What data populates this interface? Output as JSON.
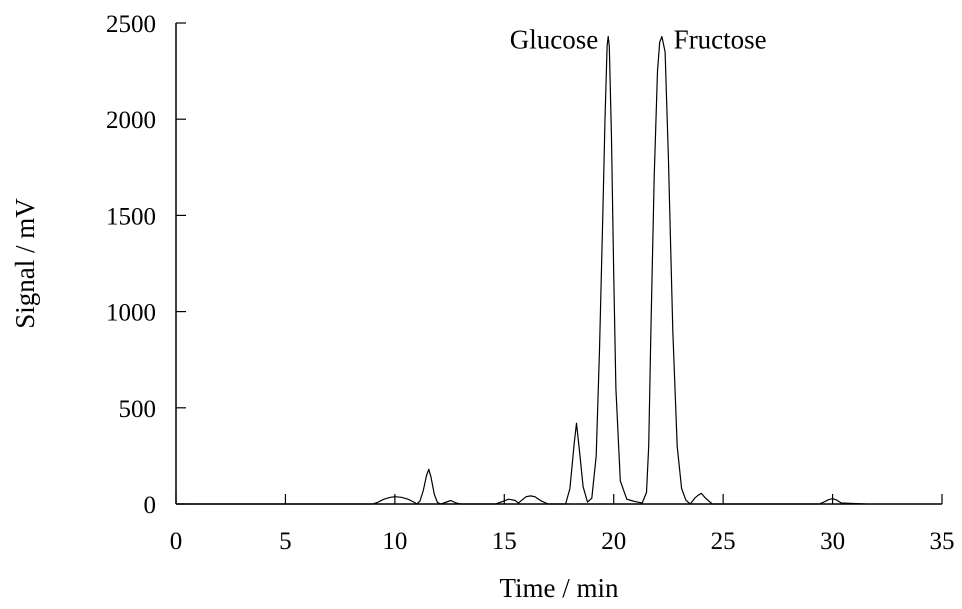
{
  "chart_data": {
    "type": "line",
    "title": "",
    "xlabel": "Time / min",
    "ylabel": "Signal / mV",
    "xlim": [
      0,
      35
    ],
    "ylim": [
      0,
      2500
    ],
    "xticks": [
      0,
      5,
      10,
      15,
      20,
      25,
      30,
      35
    ],
    "yticks": [
      0,
      500,
      1000,
      1500,
      2000,
      2500
    ],
    "grid": false,
    "annotations": [
      {
        "text": "Glucose",
        "x": 19.75,
        "y": 2430
      },
      {
        "text": "Fructose",
        "x": 22.1,
        "y": 2430
      }
    ],
    "series": [
      {
        "x": [
          0,
          9.0,
          9.2,
          9.5,
          9.8,
          10.0,
          10.3,
          10.6,
          10.9,
          11.0,
          11.15,
          11.3,
          11.45,
          11.55,
          11.65,
          11.8,
          11.95,
          12.1,
          12.3,
          12.55,
          12.8,
          13.0,
          14.6,
          14.9,
          15.2,
          15.5,
          15.65,
          15.8,
          16.0,
          16.2,
          16.4,
          16.7,
          17.0,
          17.5,
          17.8,
          18.0,
          18.1,
          18.2,
          18.3,
          18.45,
          18.6,
          18.8,
          19.0,
          19.2,
          19.35,
          19.5,
          19.6,
          19.7,
          19.75,
          19.8,
          19.9,
          20.0,
          20.1,
          20.3,
          20.6,
          20.8,
          21.0,
          21.3,
          21.5,
          21.6,
          21.7,
          21.85,
          22.0,
          22.1,
          22.2,
          22.35,
          22.5,
          22.7,
          22.9,
          23.1,
          23.3,
          23.5,
          23.7,
          23.85,
          24.0,
          24.2,
          24.5,
          25.0,
          29.4,
          29.6,
          29.8,
          30.0,
          30.2,
          30.4,
          31.5
        ],
        "y": [
          0,
          0,
          8,
          25,
          35,
          38,
          35,
          25,
          8,
          0,
          15,
          70,
          150,
          180,
          140,
          50,
          8,
          0,
          8,
          18,
          5,
          0,
          0,
          12,
          25,
          18,
          5,
          20,
          38,
          42,
          38,
          15,
          0,
          0,
          0,
          80,
          200,
          320,
          420,
          260,
          90,
          10,
          30,
          250,
          800,
          1500,
          2000,
          2380,
          2430,
          2380,
          1900,
          1200,
          600,
          120,
          25,
          18,
          12,
          5,
          60,
          300,
          900,
          1700,
          2250,
          2400,
          2430,
          2350,
          1800,
          900,
          300,
          80,
          20,
          0,
          30,
          45,
          55,
          30,
          0,
          0,
          0,
          10,
          22,
          28,
          20,
          5,
          0
        ]
      }
    ]
  }
}
